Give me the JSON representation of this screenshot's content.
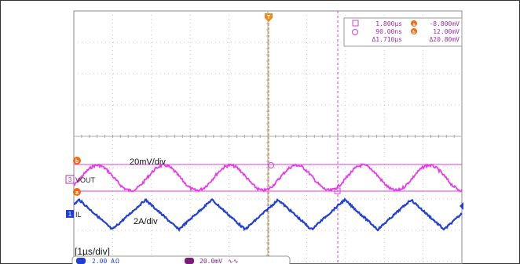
{
  "chart_data": {
    "type": "line",
    "title": "",
    "time_per_div": "[1µs/div]",
    "grid": true,
    "divisions": {
      "horizontal": 10,
      "vertical": 8
    },
    "series": [
      {
        "name": "VOUT",
        "scale_label": "20mV/div",
        "color": "#e83be8",
        "waveform": "sine",
        "period_us": 1.71,
        "peak_to_peak_mV": 20.8
      },
      {
        "name": "IL",
        "scale_label": "2A/div",
        "color": "#1f3fd6",
        "waveform": "triangle",
        "period_us": 1.71
      }
    ],
    "cursors": {
      "t1": "1.800µs",
      "t2": "90.00ns",
      "dt": "Δ1.710µs",
      "v1": "-8.800mV",
      "v2": "12.00mV",
      "dv": "Δ20.80mV"
    },
    "channel_settings": [
      {
        "id": "1",
        "label": "2.00 A",
        "suffix": "Ω",
        "color": "#1f3fd6"
      },
      {
        "id": "3",
        "label": "20.0mV",
        "suffix": "∿∿",
        "color": "#7a1d7a"
      }
    ],
    "markers": {
      "trigger": "T",
      "cursor_a": "a",
      "cursor_b": "b",
      "ch3": "3",
      "ch1": "1"
    }
  }
}
